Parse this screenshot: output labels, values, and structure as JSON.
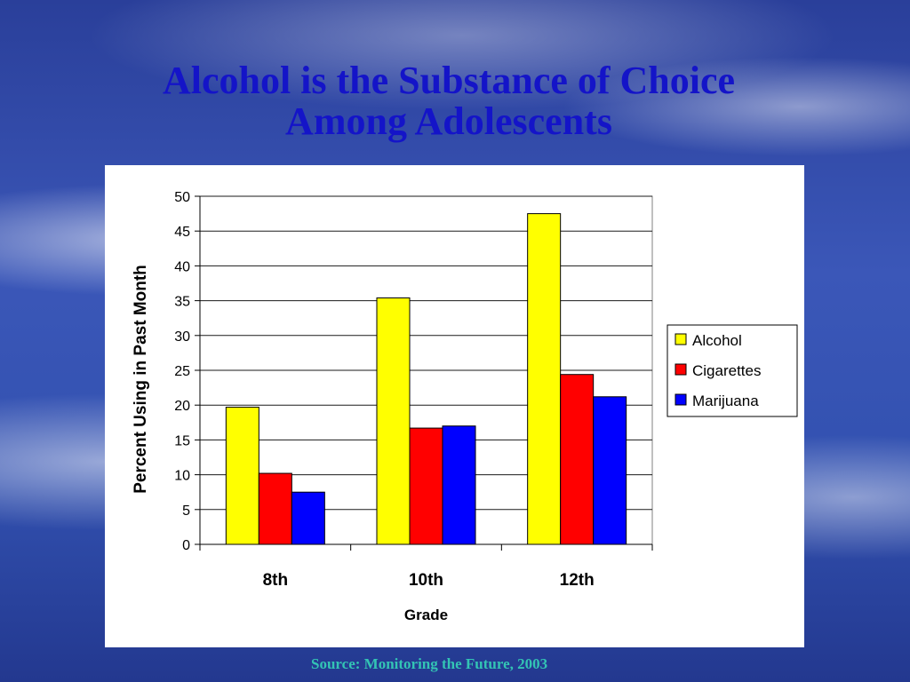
{
  "slide": {
    "title_line1": "Alcohol is the Substance of Choice",
    "title_line2": "Among Adolescents",
    "source": "Source:  Monitoring the Future, 2003"
  },
  "chart_data": {
    "type": "bar",
    "categories": [
      "8th",
      "10th",
      "12th"
    ],
    "series": [
      {
        "name": "Alcohol",
        "values": [
          19.7,
          35.4,
          47.5
        ],
        "color": "#ffff00"
      },
      {
        "name": "Cigarettes",
        "values": [
          10.2,
          16.7,
          24.4
        ],
        "color": "#ff0000"
      },
      {
        "name": "Marijuana",
        "values": [
          7.5,
          17.0,
          21.2
        ],
        "color": "#0000ff"
      }
    ],
    "xlabel": "Grade",
    "ylabel": "Percent Using in Past Month",
    "ylim": [
      0,
      50
    ],
    "yticks": [
      0,
      5,
      10,
      15,
      20,
      25,
      30,
      35,
      40,
      45,
      50
    ],
    "grid": true,
    "legend_position": "right"
  }
}
